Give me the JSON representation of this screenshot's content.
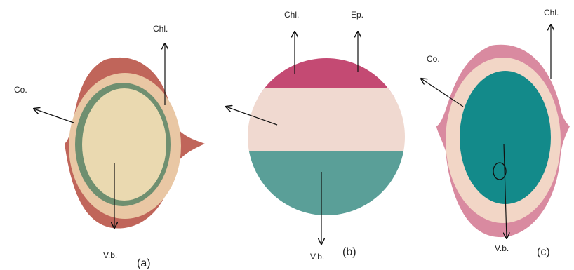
{
  "panels": [
    {
      "caption": "(a)",
      "labels": [
        "Co.",
        "Chl.",
        "V.b."
      ]
    },
    {
      "caption": "(b)",
      "labels": [
        "Chl.",
        "Ep.",
        "V.b."
      ]
    },
    {
      "caption": "(c)",
      "labels": [
        "Co.",
        "Chl.",
        "V.b."
      ]
    }
  ]
}
